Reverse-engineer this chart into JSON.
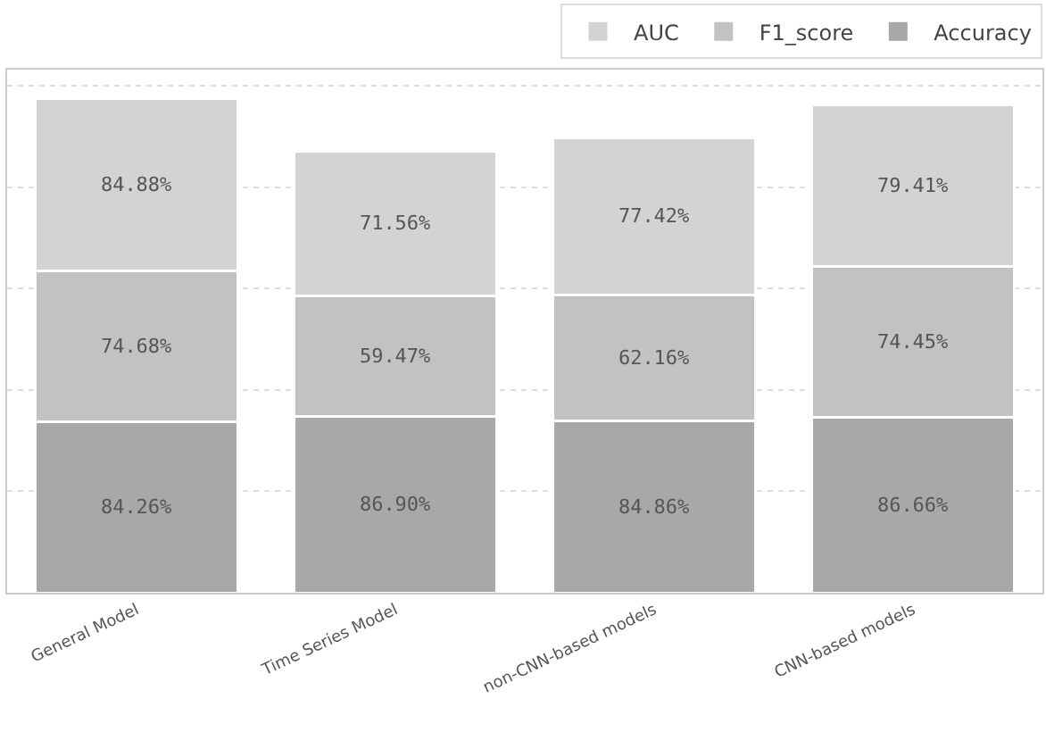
{
  "chart_data": {
    "type": "bar",
    "stacked": true,
    "categories": [
      "General Model",
      "Time Series Model",
      "non-CNN-based models",
      "CNN-based models"
    ],
    "series": [
      {
        "name": "Accuracy",
        "color": "#a8a8a8",
        "values": [
          84.26,
          86.9,
          84.86,
          86.66
        ],
        "value_labels": [
          "84.26%",
          "86.90%",
          "84.86%",
          "86.66%"
        ]
      },
      {
        "name": "F1_score",
        "color": "#c2c2c2",
        "values": [
          74.68,
          59.47,
          62.16,
          74.45
        ],
        "value_labels": [
          "74.68%",
          "59.47%",
          "62.16%",
          "74.45%"
        ]
      },
      {
        "name": "AUC",
        "color": "#d3d3d3",
        "values": [
          84.88,
          71.56,
          77.42,
          79.41
        ],
        "value_labels": [
          "84.88%",
          "71.56%",
          "77.42%",
          "79.41%"
        ]
      }
    ],
    "ylim": [
      0,
      258
    ],
    "yticks": [
      {
        "value": 50,
        "label": null
      },
      {
        "value": 100,
        "label": null
      },
      {
        "value": 150,
        "label": null
      },
      {
        "value": 200,
        "label": null
      },
      {
        "value": 250,
        "label": null
      }
    ],
    "grid": "y",
    "legend": "top right",
    "tick_labels": "x"
  }
}
